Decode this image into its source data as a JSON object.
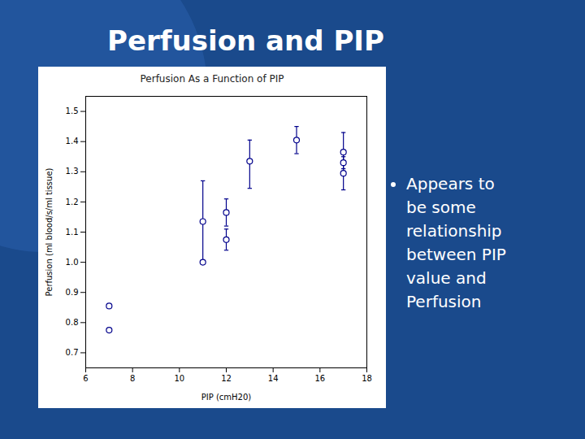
{
  "chart_data": {
    "type": "scatter",
    "title": "Perfusion and PIP",
    "subtitle": "Perfusion As a Function of PIP",
    "xlabel": "PIP (cmH20)",
    "ylabel": "Perfusion (ml blood/s/ml tissue)",
    "x": [
      7,
      7,
      11,
      11,
      12,
      12,
      13,
      15,
      17,
      17,
      17
    ],
    "values": [
      0.855,
      0.775,
      1.0,
      1.135,
      1.075,
      1.165,
      1.335,
      1.405,
      1.295,
      1.33,
      1.365
    ],
    "yerr_low": [
      0.0,
      0.0,
      0.0,
      0.0,
      0.035,
      0.045,
      0.09,
      0.045,
      0.055,
      0.02,
      0.04
    ],
    "yerr_high": [
      0.0,
      0.0,
      0.27,
      0.0,
      0.035,
      0.045,
      0.07,
      0.045,
      0.04,
      0.02,
      0.065
    ],
    "color": "#00008b",
    "marker": "circle",
    "xlim": [
      6,
      18
    ],
    "xticks": [
      6,
      8,
      10,
      12,
      14,
      16,
      18
    ],
    "ylim": [
      0.65,
      1.55
    ],
    "yticks": [
      0.7,
      0.8,
      0.9,
      {
        "value": 1.0,
        "label": "1.0"
      },
      1.1,
      1.2,
      1.3,
      1.4,
      1.5
    ],
    "grid": false,
    "annotations": [
      "Appears to",
      "be some",
      "relationship",
      "between PIP",
      "value and",
      "Perfusion"
    ]
  }
}
